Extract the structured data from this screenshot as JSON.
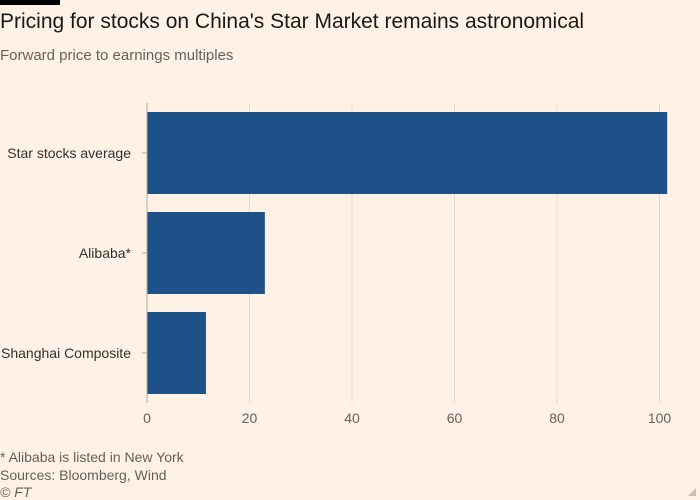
{
  "header": {
    "title": "Pricing for stocks on China's Star Market remains astronomical",
    "subtitle": "Forward price to earnings multiples"
  },
  "chart_data": {
    "type": "bar",
    "orientation": "horizontal",
    "categories": [
      "Star stocks average",
      "Alibaba*",
      "Shanghai Composite"
    ],
    "values": [
      101.5,
      23,
      11.5
    ],
    "xlim": [
      0,
      104
    ],
    "xticks": [
      0,
      20,
      40,
      60,
      80,
      100
    ],
    "grid": true,
    "bar_color": "#1f5189",
    "grid_color": "#e6d9ce"
  },
  "footer": {
    "note": "* Alibaba is listed in New York",
    "sources": "Sources: Bloomberg, Wind",
    "copyright": "© FT"
  }
}
